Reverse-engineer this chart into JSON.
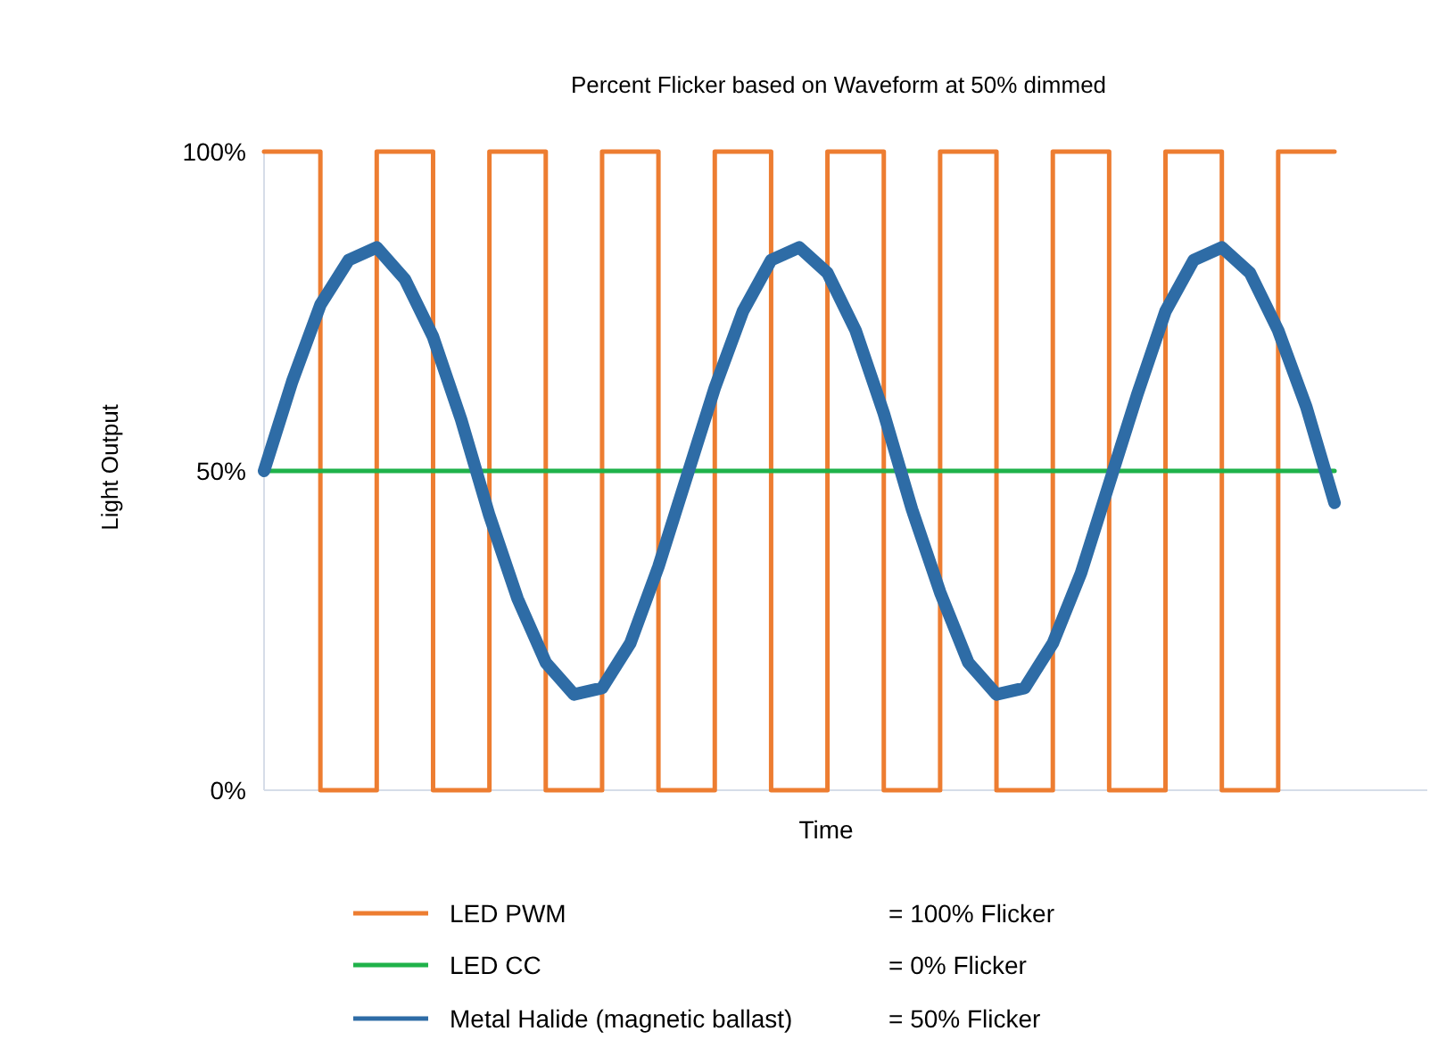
{
  "chart_data": {
    "type": "line",
    "title": "Percent Flicker based on Waveform at 50% dimmed",
    "xlabel": "Time",
    "ylabel": "Light Output",
    "categories": [
      null,
      null,
      null,
      null,
      null,
      null,
      null,
      null,
      null,
      null,
      null,
      null,
      null,
      null,
      null,
      null,
      null,
      null,
      null,
      null,
      null,
      null,
      null,
      null,
      null,
      null,
      null,
      null,
      null,
      null,
      null,
      null,
      null,
      null,
      null,
      null,
      null,
      null,
      null
    ],
    "series": [
      {
        "name": "LED PWM",
        "type": "step",
        "color": "#ed7d31",
        "values": [
          100,
          100,
          0,
          0,
          100,
          100,
          0,
          0,
          100,
          100,
          0,
          0,
          100,
          100,
          0,
          0,
          100,
          100,
          0,
          0,
          100,
          100,
          0,
          0,
          100,
          100,
          0,
          0,
          100,
          100,
          0,
          0,
          100,
          100,
          0,
          0,
          100,
          100,
          100
        ]
      },
      {
        "name": "LED CC",
        "color": "#1fb24a",
        "values": [
          50,
          50,
          50,
          50,
          50,
          50,
          50,
          50,
          50,
          50,
          50,
          50,
          50,
          50,
          50,
          50,
          50,
          50,
          50,
          50,
          50,
          50,
          50,
          50,
          50,
          50,
          50,
          50,
          50,
          50,
          50,
          50,
          50,
          50,
          50,
          50,
          50,
          50,
          50
        ]
      },
      {
        "name": "Metal Halide (magnetic ballast)",
        "color": "#2e6ca6",
        "values": [
          50,
          64,
          76,
          83,
          85,
          80,
          71,
          58,
          43,
          30,
          20,
          15,
          16,
          23,
          35,
          49,
          63,
          75,
          83,
          85,
          81,
          72,
          59,
          44,
          31,
          20,
          15,
          16,
          23,
          34,
          48,
          62,
          75,
          83,
          85,
          81,
          72,
          60,
          45
        ]
      }
    ],
    "annotations": [
      "= 100% Flicker",
      "= 0% Flicker",
      "= 50% Flicker"
    ],
    "ylim": [
      0,
      100
    ],
    "yticks": [
      {
        "value": 0,
        "label": "0%"
      },
      {
        "value": 50,
        "label": "50%"
      },
      {
        "value": 100,
        "label": "100%"
      }
    ],
    "tick_labels": "y",
    "legend": "bottom",
    "grid": false
  }
}
